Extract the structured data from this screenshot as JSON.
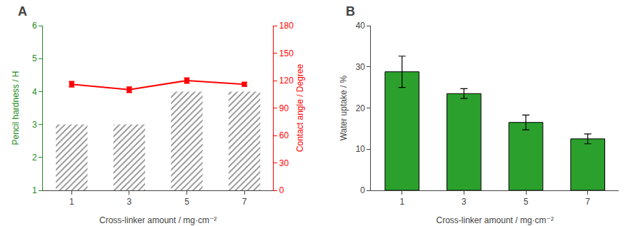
{
  "chart_data": [
    {
      "type": "bar",
      "title": "A",
      "categories": [
        "1",
        "3",
        "5",
        "7"
      ],
      "xlabel": "Cross-linker amount / mg·cm⁻²",
      "ylabel": "Pencil hardness / H",
      "y2label": "Contact angle / Degree",
      "series": [
        {
          "type": "bar",
          "color": "#228B22",
          "values": [
            3,
            3,
            4,
            4
          ]
        },
        {
          "type": "line",
          "axis": "y2",
          "color": "red",
          "marker": "square",
          "values": [
            116,
            110,
            120,
            116
          ],
          "errors": [
            3,
            3,
            3,
            2
          ]
        }
      ],
      "ylim": [
        1,
        6
      ],
      "yticks": [
        1,
        2,
        3,
        4,
        5,
        6
      ],
      "y2lim": [
        0,
        180
      ],
      "y2ticks": [
        0,
        30,
        60,
        90,
        120,
        150,
        180
      ],
      "grid": false
    },
    {
      "type": "bar",
      "title": "B",
      "categories": [
        "1",
        "3",
        "5",
        "7"
      ],
      "xlabel": "Cross-linker amount / mg·cm⁻²",
      "ylabel": "Water uptake / %",
      "values": [
        28.8,
        23.5,
        16.5,
        12.5
      ],
      "errors": [
        3.8,
        1.2,
        1.8,
        1.2
      ],
      "ylim": [
        0,
        40
      ],
      "yticks": [
        0,
        10,
        20,
        30,
        40
      ],
      "grid": false
    }
  ]
}
